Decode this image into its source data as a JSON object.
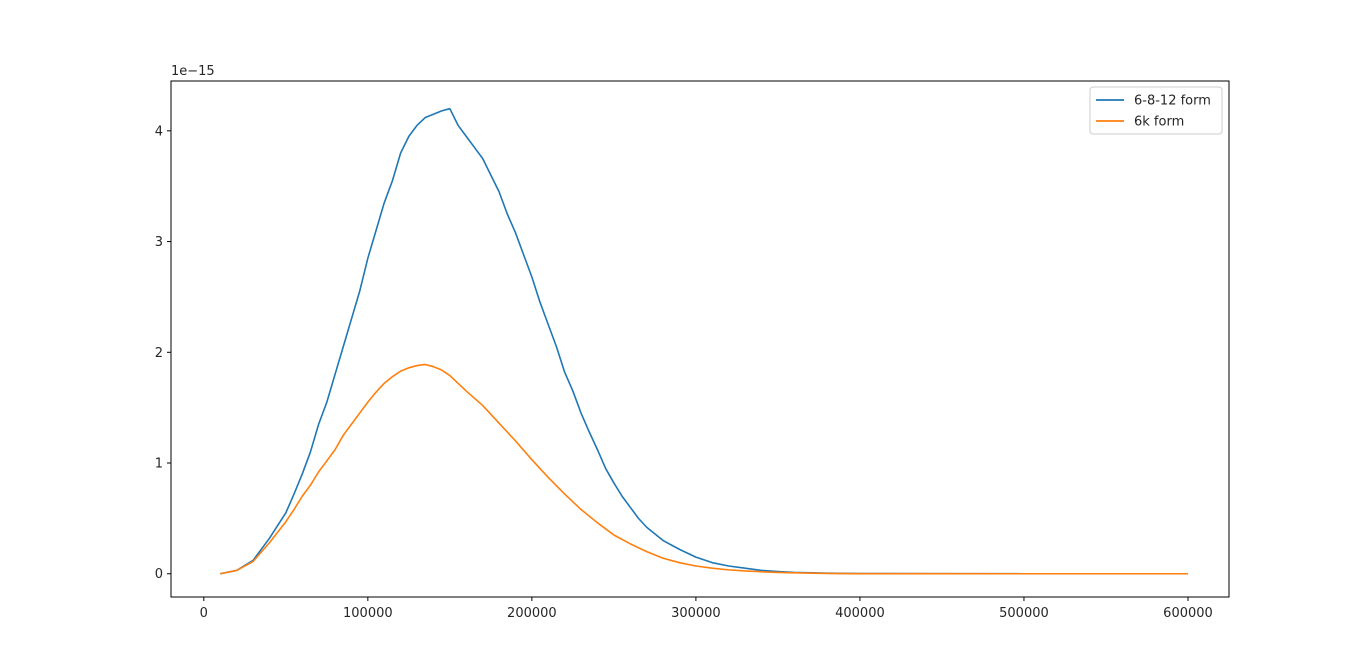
{
  "chart_data": {
    "type": "line",
    "title": "",
    "xlabel": "",
    "ylabel": "",
    "y_offset_label": "1e−15",
    "xlim": [
      -20000,
      625000
    ],
    "ylim": [
      -0.21,
      4.45
    ],
    "x_ticks": [
      0,
      100000,
      200000,
      300000,
      400000,
      500000,
      600000
    ],
    "x_tick_labels": [
      "0",
      "100000",
      "200000",
      "300000",
      "400000",
      "500000",
      "600000"
    ],
    "y_ticks": [
      0,
      1,
      2,
      3,
      4
    ],
    "y_tick_labels": [
      "0",
      "1",
      "2",
      "3",
      "4"
    ],
    "grid": false,
    "legend_position": "top-right",
    "series": [
      {
        "name": "6-8-12 form",
        "color": "#1f77b4",
        "x": [
          10000,
          20000,
          30000,
          40000,
          50000,
          55000,
          60000,
          65000,
          70000,
          75000,
          80000,
          85000,
          90000,
          95000,
          100000,
          105000,
          110000,
          115000,
          120000,
          125000,
          130000,
          135000,
          140000,
          145000,
          150000,
          155000,
          160000,
          165000,
          170000,
          175000,
          180000,
          185000,
          190000,
          195000,
          200000,
          205000,
          210000,
          215000,
          220000,
          225000,
          230000,
          235000,
          240000,
          245000,
          250000,
          255000,
          260000,
          265000,
          270000,
          275000,
          280000,
          290000,
          300000,
          310000,
          320000,
          330000,
          340000,
          350000,
          360000,
          380000,
          400000,
          450000,
          500000,
          550000,
          600000
        ],
        "values": [
          0.0,
          0.03,
          0.12,
          0.32,
          0.55,
          0.72,
          0.9,
          1.1,
          1.35,
          1.55,
          1.8,
          2.05,
          2.3,
          2.55,
          2.85,
          3.1,
          3.35,
          3.55,
          3.8,
          3.95,
          4.05,
          4.12,
          4.15,
          4.18,
          4.2,
          4.05,
          3.95,
          3.85,
          3.75,
          3.6,
          3.45,
          3.25,
          3.08,
          2.88,
          2.68,
          2.45,
          2.25,
          2.05,
          1.82,
          1.65,
          1.45,
          1.28,
          1.12,
          0.95,
          0.82,
          0.7,
          0.6,
          0.5,
          0.42,
          0.36,
          0.3,
          0.22,
          0.15,
          0.1,
          0.07,
          0.05,
          0.03,
          0.02,
          0.012,
          0.005,
          0.002,
          0.0005,
          0.0001,
          0.0,
          0.0
        ]
      },
      {
        "name": "6k form",
        "color": "#ff7f0e",
        "x": [
          10000,
          20000,
          30000,
          40000,
          50000,
          55000,
          60000,
          65000,
          70000,
          75000,
          80000,
          85000,
          90000,
          95000,
          100000,
          105000,
          110000,
          115000,
          120000,
          125000,
          130000,
          135000,
          140000,
          145000,
          150000,
          155000,
          160000,
          170000,
          180000,
          190000,
          200000,
          210000,
          220000,
          230000,
          240000,
          250000,
          260000,
          270000,
          280000,
          290000,
          300000,
          310000,
          320000,
          330000,
          340000,
          350000,
          360000,
          380000,
          400000,
          450000,
          500000,
          550000,
          600000
        ],
        "values": [
          0.0,
          0.03,
          0.11,
          0.28,
          0.47,
          0.58,
          0.7,
          0.8,
          0.92,
          1.02,
          1.12,
          1.25,
          1.35,
          1.45,
          1.55,
          1.64,
          1.72,
          1.78,
          1.83,
          1.86,
          1.88,
          1.89,
          1.87,
          1.84,
          1.79,
          1.72,
          1.65,
          1.52,
          1.36,
          1.2,
          1.03,
          0.87,
          0.72,
          0.58,
          0.46,
          0.35,
          0.27,
          0.2,
          0.14,
          0.1,
          0.07,
          0.05,
          0.035,
          0.025,
          0.018,
          0.012,
          0.008,
          0.003,
          0.001,
          0.0002,
          0.0,
          0.0,
          0.0
        ]
      }
    ]
  }
}
